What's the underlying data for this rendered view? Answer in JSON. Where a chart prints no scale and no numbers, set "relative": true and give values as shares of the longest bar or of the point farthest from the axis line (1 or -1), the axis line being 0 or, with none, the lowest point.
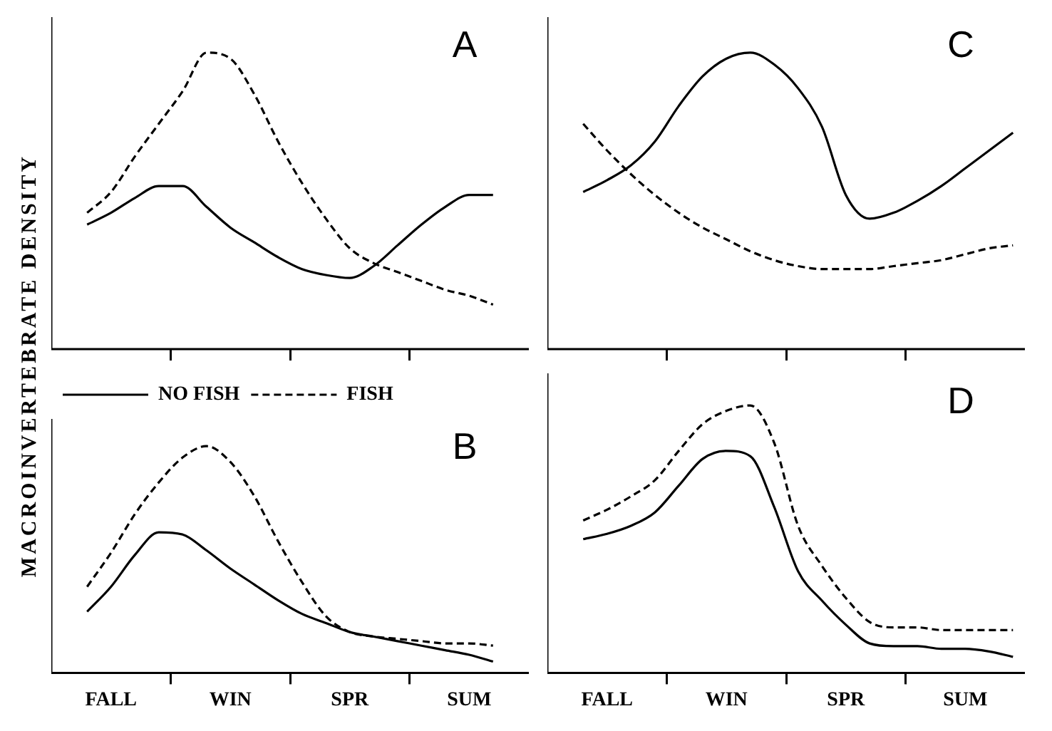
{
  "chart_data": [
    {
      "type": "line",
      "title": "A",
      "ylabel": "MACROINVERTEBRATE DENSITY",
      "relative": true,
      "marker": "none",
      "tick_labels": false,
      "categories": [
        null,
        null,
        null,
        null,
        null,
        null,
        null,
        null,
        null,
        null,
        null,
        null,
        null,
        null,
        null,
        null,
        null,
        null,
        null,
        null
      ],
      "series": [
        {
          "color": "#000000",
          "line_style": "solid",
          "values": [
            null,
            0.42,
            0.46,
            0.51,
            0.55,
            0.55,
            0.48,
            0.41,
            0.36,
            0.31,
            0.27,
            0.25,
            0.24,
            0.28,
            0.35,
            0.42,
            0.48,
            0.52,
            0.52,
            null
          ]
        },
        {
          "color": "#000000",
          "line_style": "dashed",
          "values": [
            null,
            0.46,
            0.53,
            0.65,
            0.76,
            0.87,
            1,
            0.98,
            0.86,
            0.7,
            0.56,
            0.44,
            0.34,
            0.29,
            0.26,
            0.23,
            0.2,
            0.18,
            0.15,
            null
          ]
        }
      ]
    },
    {
      "type": "line",
      "title": "C",
      "relative": true,
      "marker": "none",
      "tick_labels": false,
      "categories": [
        null,
        null,
        null,
        null,
        null,
        null,
        null,
        null,
        null,
        null,
        null,
        null,
        null,
        null,
        null,
        null,
        null,
        null,
        null,
        null
      ],
      "series": [
        {
          "color": "#000000",
          "line_style": "solid",
          "values": [
            null,
            0.53,
            0.57,
            0.62,
            0.7,
            0.82,
            0.92,
            0.98,
            1,
            0.96,
            0.88,
            0.75,
            0.52,
            0.44,
            0.46,
            0.5,
            0.55,
            0.61,
            0.67,
            0.73
          ]
        },
        {
          "color": "#000000",
          "line_style": "dashed",
          "values": [
            null,
            0.76,
            0.67,
            0.59,
            0.52,
            0.46,
            0.41,
            0.37,
            0.33,
            0.3,
            0.28,
            0.27,
            0.27,
            0.27,
            0.28,
            0.29,
            0.3,
            0.32,
            0.34,
            0.35
          ]
        }
      ]
    },
    {
      "type": "line",
      "title": "B",
      "relative": true,
      "marker": "none",
      "tick_labels": "x",
      "legend": "top left",
      "categories": [
        null,
        null,
        "FALL",
        null,
        null,
        null,
        null,
        "WIN",
        null,
        null,
        null,
        null,
        "SPR",
        null,
        null,
        null,
        null,
        "SUM",
        null,
        null
      ],
      "series": [
        {
          "name": "NO FISH",
          "color": "#000000",
          "line_style": "solid",
          "values": [
            null,
            0.27,
            0.38,
            0.52,
            0.62,
            0.61,
            0.54,
            0.46,
            0.39,
            0.32,
            0.26,
            0.22,
            0.18,
            0.16,
            0.14,
            0.12,
            0.1,
            0.08,
            0.05,
            null
          ]
        },
        {
          "name": "FISH",
          "color": "#000000",
          "line_style": "dashed",
          "values": [
            null,
            0.38,
            0.53,
            0.7,
            0.84,
            0.95,
            1,
            0.93,
            0.78,
            0.58,
            0.4,
            0.25,
            0.18,
            0.16,
            0.15,
            0.14,
            0.13,
            0.13,
            0.12,
            null
          ]
        }
      ]
    },
    {
      "type": "line",
      "title": "D",
      "relative": true,
      "marker": "none",
      "tick_labels": "x",
      "categories": [
        null,
        null,
        "FALL",
        null,
        null,
        null,
        null,
        "WIN",
        null,
        null,
        null,
        null,
        "SPR",
        null,
        null,
        null,
        null,
        "SUM",
        null,
        null
      ],
      "series": [
        {
          "color": "#000000",
          "line_style": "solid",
          "values": [
            null,
            0.5,
            0.52,
            0.55,
            0.6,
            0.7,
            0.8,
            0.83,
            0.81,
            0.62,
            0.38,
            0.27,
            0.18,
            0.11,
            0.1,
            0.1,
            0.09,
            0.09,
            0.08,
            0.06
          ]
        },
        {
          "color": "#000000",
          "line_style": "dashed",
          "values": [
            null,
            0.57,
            0.61,
            0.66,
            0.72,
            0.83,
            0.93,
            0.98,
            1,
            0.86,
            0.55,
            0.4,
            0.28,
            0.19,
            0.17,
            0.17,
            0.16,
            0.16,
            0.16,
            0.16
          ]
        }
      ]
    }
  ]
}
